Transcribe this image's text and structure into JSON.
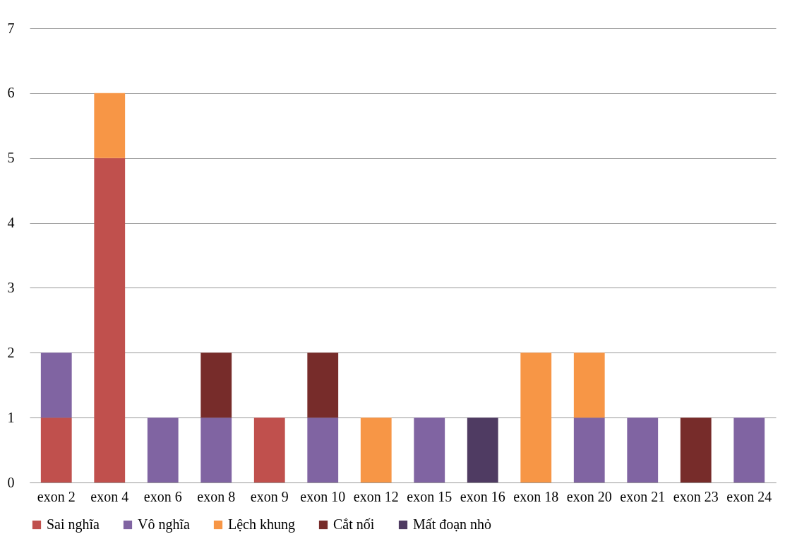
{
  "chart_data": {
    "type": "bar",
    "stacked": true,
    "categories": [
      "exon 2",
      "exon 4",
      "exon 6",
      "exon 8",
      "exon 9",
      "exon 10",
      "exon 12",
      "exon 15",
      "exon 16",
      "exon 18",
      "exon 20",
      "exon 21",
      "exon 23",
      "exon 24"
    ],
    "series": [
      {
        "name": "Sai nghĩa",
        "color": "#c0504d",
        "values": [
          1,
          5,
          null,
          null,
          1,
          null,
          null,
          null,
          null,
          null,
          null,
          null,
          null,
          null
        ]
      },
      {
        "name": "Vô nghĩa",
        "color": "#8064a2",
        "values": [
          1,
          null,
          1,
          1,
          null,
          1,
          null,
          1,
          null,
          null,
          1,
          1,
          null,
          1
        ]
      },
      {
        "name": "Lệch khung",
        "color": "#f79646",
        "values": [
          null,
          1,
          null,
          null,
          null,
          null,
          1,
          null,
          null,
          2,
          1,
          null,
          null,
          null
        ]
      },
      {
        "name": "Cắt nối",
        "color": "#772c2a",
        "values": [
          null,
          null,
          null,
          1,
          null,
          1,
          null,
          null,
          null,
          null,
          null,
          null,
          1,
          null
        ]
      },
      {
        "name": "Mất đoạn nhỏ",
        "color": "#4f3b62",
        "values": [
          null,
          null,
          null,
          null,
          null,
          null,
          null,
          null,
          1,
          null,
          null,
          null,
          null,
          null
        ]
      }
    ],
    "ylim": [
      0,
      7
    ],
    "yticks": [
      0,
      1,
      2,
      3,
      4,
      5,
      6,
      7
    ],
    "grid": "y",
    "legend": "bottom"
  }
}
